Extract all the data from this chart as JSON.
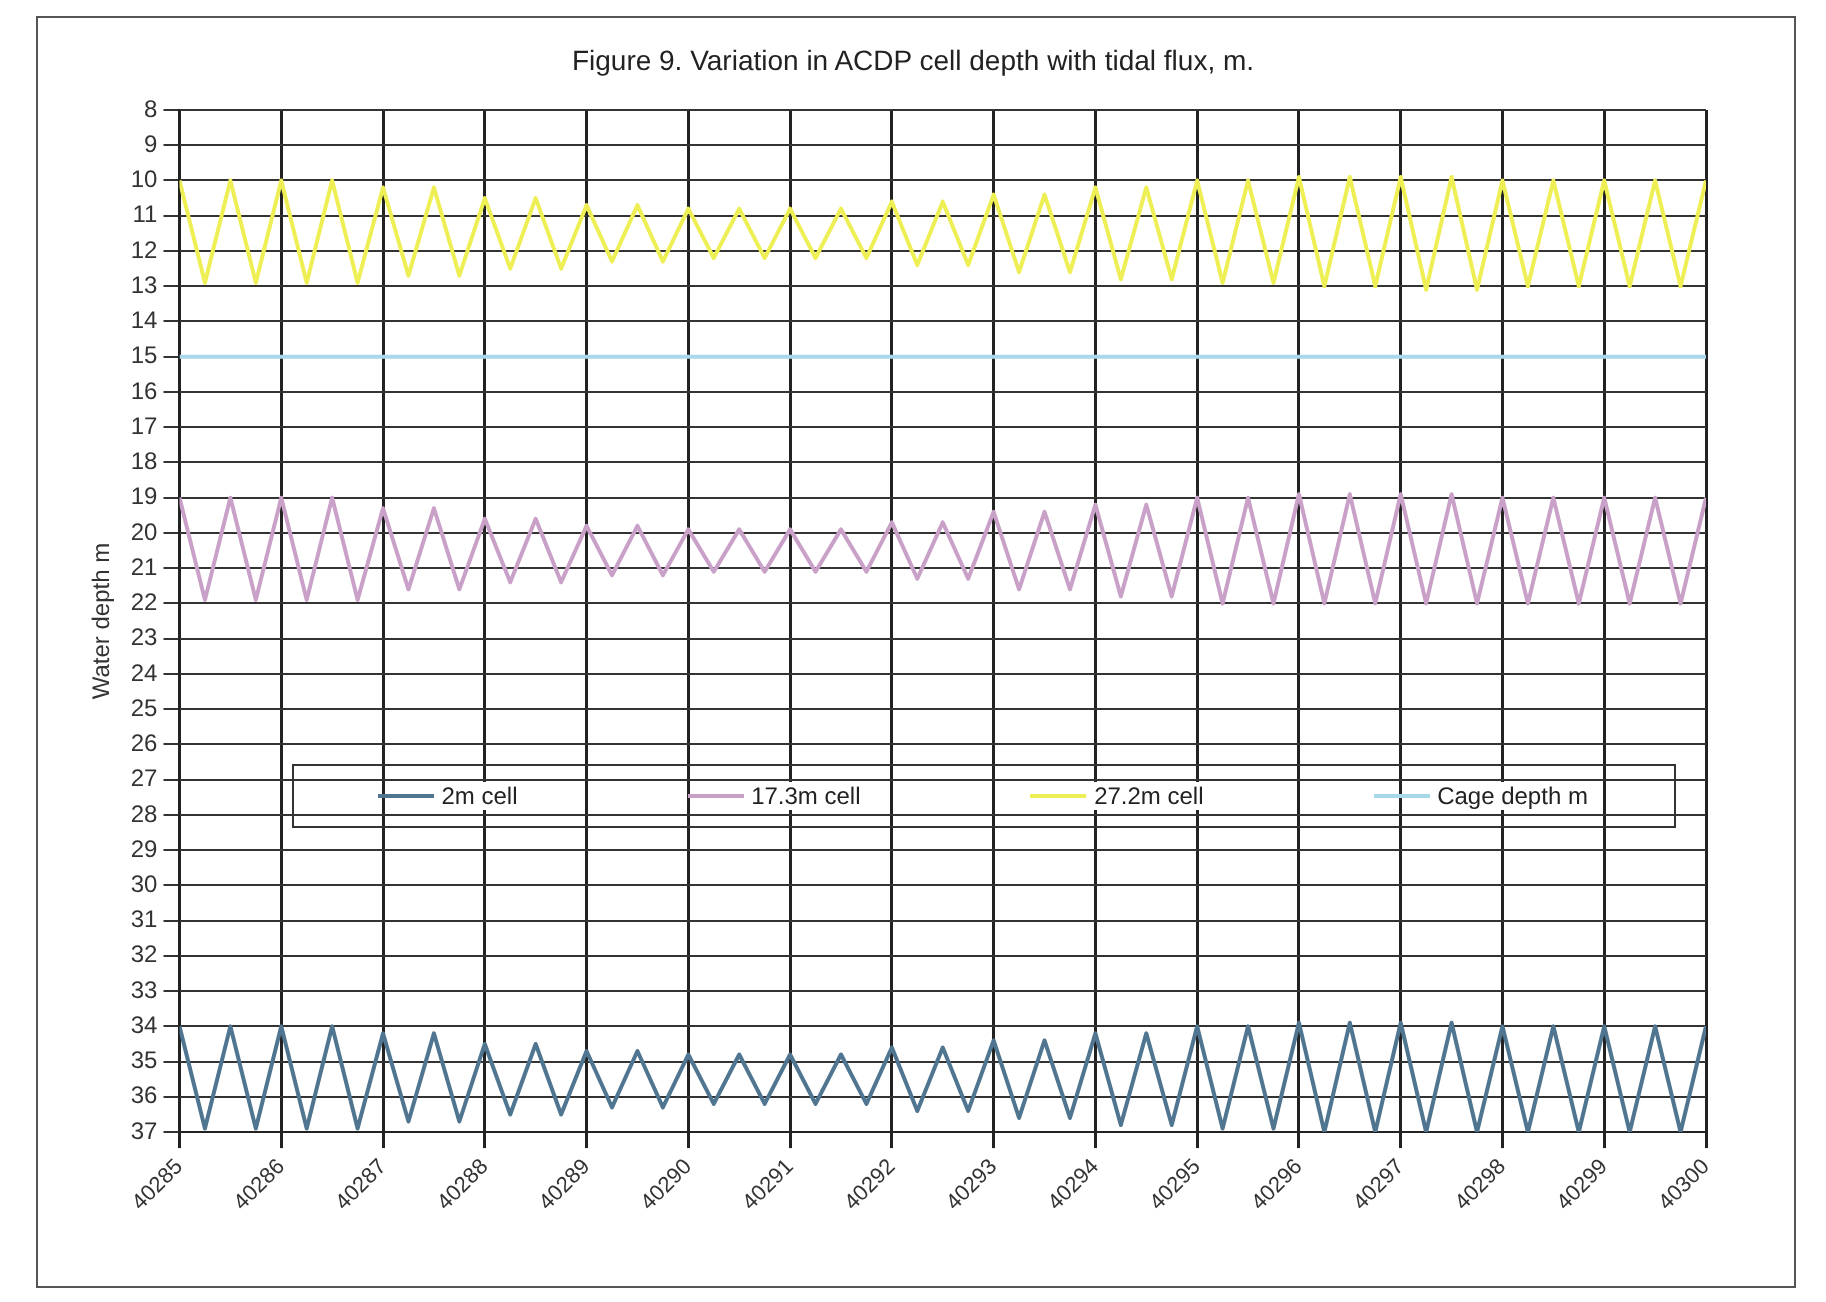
{
  "chart_data": {
    "type": "line",
    "title": "Figure 9.  Variation in ACDP cell depth with tidal flux, m.",
    "ylabel": "Water depth m",
    "x": [
      40285,
      40285.25,
      40285.5,
      40285.75,
      40286,
      40286.25,
      40286.5,
      40286.75,
      40287,
      40287.25,
      40287.5,
      40287.75,
      40288,
      40288.25,
      40288.5,
      40288.75,
      40289,
      40289.25,
      40289.5,
      40289.75,
      40290,
      40290.25,
      40290.5,
      40290.75,
      40291,
      40291.25,
      40291.5,
      40291.75,
      40292,
      40292.25,
      40292.5,
      40292.75,
      40293,
      40293.25,
      40293.5,
      40293.75,
      40294,
      40294.25,
      40294.5,
      40294.75,
      40295,
      40295.25,
      40295.5,
      40295.75,
      40296,
      40296.25,
      40296.5,
      40296.75,
      40297,
      40297.25,
      40297.5,
      40297.75,
      40298,
      40298.25,
      40298.5,
      40298.75,
      40299,
      40299.25,
      40299.5,
      40299.75,
      40300
    ],
    "series": [
      {
        "name": "2m cell",
        "color": "#4f7590",
        "values": [
          34,
          36.9,
          34,
          36.9,
          34,
          36.9,
          34,
          36.9,
          34.2,
          36.7,
          34.2,
          36.7,
          34.5,
          36.5,
          34.5,
          36.5,
          34.7,
          36.3,
          34.7,
          36.3,
          34.8,
          36.2,
          34.8,
          36.2,
          34.8,
          36.2,
          34.8,
          36.2,
          34.6,
          36.4,
          34.6,
          36.4,
          34.4,
          36.6,
          34.4,
          36.6,
          34.2,
          36.8,
          34.2,
          36.8,
          34,
          36.9,
          34,
          36.9,
          33.9,
          37,
          33.9,
          37,
          33.9,
          37,
          33.9,
          37,
          34,
          37,
          34,
          37,
          34,
          37,
          34,
          37,
          34
        ]
      },
      {
        "name": "17.3m cell",
        "color": "#c9a0c8",
        "values": [
          19,
          21.9,
          19,
          21.9,
          19,
          21.9,
          19,
          21.9,
          19.3,
          21.6,
          19.3,
          21.6,
          19.6,
          21.4,
          19.6,
          21.4,
          19.8,
          21.2,
          19.8,
          21.2,
          19.9,
          21.1,
          19.9,
          21.1,
          19.9,
          21.1,
          19.9,
          21.1,
          19.7,
          21.3,
          19.7,
          21.3,
          19.4,
          21.6,
          19.4,
          21.6,
          19.2,
          21.8,
          19.2,
          21.8,
          19,
          22,
          19,
          22,
          18.9,
          22,
          18.9,
          22,
          18.9,
          22,
          18.9,
          22,
          19,
          22,
          19,
          22,
          19,
          22,
          19,
          22,
          19
        ]
      },
      {
        "name": "27.2m cell",
        "color": "#eeee55",
        "values": [
          10,
          12.9,
          10,
          12.9,
          10,
          12.9,
          10,
          12.9,
          10.2,
          12.7,
          10.2,
          12.7,
          10.5,
          12.5,
          10.5,
          12.5,
          10.7,
          12.3,
          10.7,
          12.3,
          10.8,
          12.2,
          10.8,
          12.2,
          10.8,
          12.2,
          10.8,
          12.2,
          10.6,
          12.4,
          10.6,
          12.4,
          10.4,
          12.6,
          10.4,
          12.6,
          10.2,
          12.8,
          10.2,
          12.8,
          10,
          12.9,
          10,
          12.9,
          9.9,
          13,
          9.9,
          13,
          9.9,
          13.1,
          9.9,
          13.1,
          10,
          13,
          10,
          13,
          10,
          13,
          10,
          13,
          10
        ]
      },
      {
        "name": "Cage depth m",
        "color": "#a8d8ea",
        "x": [
          40285,
          40300
        ],
        "values": [
          15,
          15
        ]
      }
    ],
    "xlim": [
      40285,
      40300
    ],
    "xticks": [
      40285,
      40286,
      40287,
      40288,
      40289,
      40290,
      40291,
      40292,
      40293,
      40294,
      40295,
      40296,
      40297,
      40298,
      40299,
      40300
    ],
    "ylim": [
      37,
      8
    ],
    "yticks": [
      8,
      9,
      10,
      11,
      12,
      13,
      14,
      15,
      16,
      17,
      18,
      19,
      20,
      21,
      22,
      23,
      24,
      25,
      26,
      27,
      28,
      29,
      30,
      31,
      32,
      33,
      34,
      35,
      36,
      37
    ],
    "grid": true,
    "legend": "center",
    "marker": "none",
    "line_style": "solid"
  }
}
